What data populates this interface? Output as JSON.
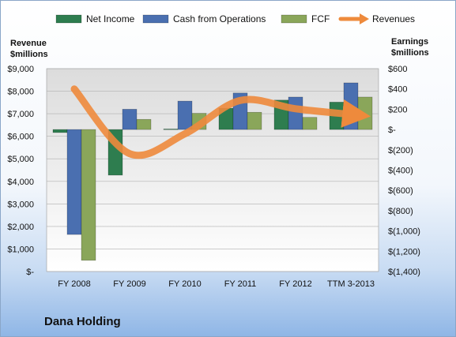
{
  "company_name": "Dana Holding",
  "chart_data": {
    "type": "bar",
    "categories": [
      "FY 2008",
      "FY 2009",
      "FY 2010",
      "FY 2011",
      "FY 2012",
      "TTM 3-2013"
    ],
    "left_axis": {
      "title_lines": [
        "Revenue",
        "$millions"
      ],
      "ylim": [
        0,
        9000
      ],
      "ticks": [
        0,
        1000,
        2000,
        3000,
        4000,
        5000,
        6000,
        7000,
        8000,
        9000
      ],
      "tick_labels": [
        "$-",
        "$1,000",
        "$2,000",
        "$3,000",
        "$4,000",
        "$5,000",
        "$6,000",
        "$7,000",
        "$8,000",
        "$9,000"
      ]
    },
    "right_axis": {
      "title_lines": [
        "Earnings",
        "$millions"
      ],
      "ylim": [
        -1400,
        600
      ],
      "ticks": [
        600,
        400,
        200,
        0,
        -200,
        -400,
        -600,
        -800,
        -1000,
        -1200,
        -1400
      ],
      "tick_labels": [
        "$600",
        "$400",
        "$200",
        "$-",
        "$(200)",
        "$(400)",
        "$(600)",
        "$(800)",
        "$(1,000)",
        "$(1,200)",
        "$(1,400)"
      ]
    },
    "series": [
      {
        "name": "Net Income",
        "axis": "right",
        "color": "#2e7d4f",
        "values": [
          -30,
          -450,
          5,
          210,
          290,
          270
        ]
      },
      {
        "name": "Cash from Operations",
        "axis": "right",
        "color": "#4a6fb0",
        "values": [
          -1035,
          200,
          280,
          360,
          320,
          460
        ]
      },
      {
        "name": "FCF",
        "axis": "right",
        "color": "#8aa65a",
        "values": [
          -1290,
          100,
          160,
          170,
          120,
          320
        ]
      },
      {
        "name": "Revenues",
        "axis": "left",
        "type": "line",
        "color": "#ee8a3c",
        "values": [
          8100,
          5230,
          6110,
          7590,
          7220,
          6970
        ]
      }
    ],
    "grid": true,
    "legend": "top"
  }
}
